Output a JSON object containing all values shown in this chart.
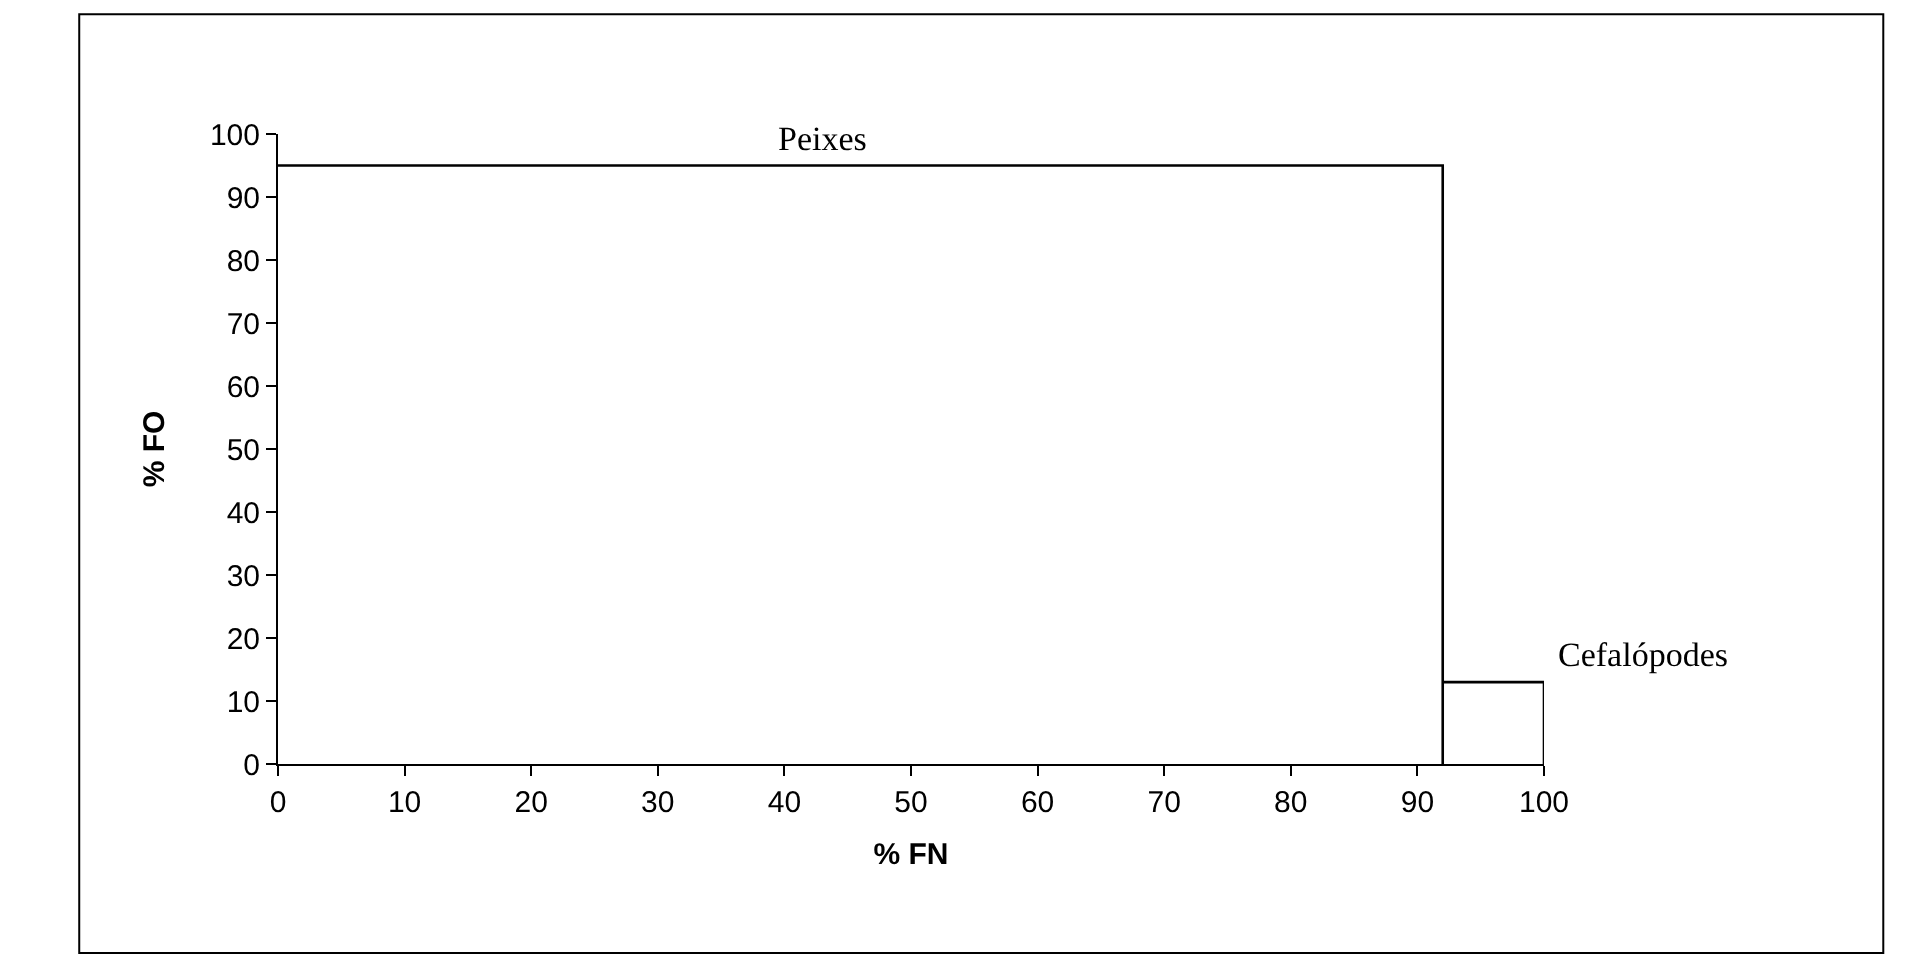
{
  "chart_data": {
    "type": "line",
    "xlabel": "% FN",
    "ylabel": "% FO",
    "series": [
      {
        "color": "#000000",
        "x": [
          0,
          92,
          92
        ],
        "values": [
          95,
          95,
          0
        ]
      },
      {
        "color": "#000000",
        "x": [
          92,
          100,
          100
        ],
        "values": [
          13,
          13,
          0
        ]
      }
    ],
    "annotations": [
      {
        "text": "Peixes",
        "x": 43,
        "y": 95
      },
      {
        "text": "Cefalópodes",
        "x": 100,
        "y": 13
      }
    ],
    "xlim": [
      0,
      100
    ],
    "xticks": [
      0,
      10,
      20,
      30,
      40,
      50,
      60,
      70,
      80,
      90,
      100
    ],
    "ylim": [
      0,
      100
    ],
    "yticks": [
      0,
      10,
      20,
      30,
      40,
      50,
      60,
      70,
      80,
      90,
      100
    ],
    "grid": false,
    "marker": "none",
    "line_style": "solid"
  }
}
